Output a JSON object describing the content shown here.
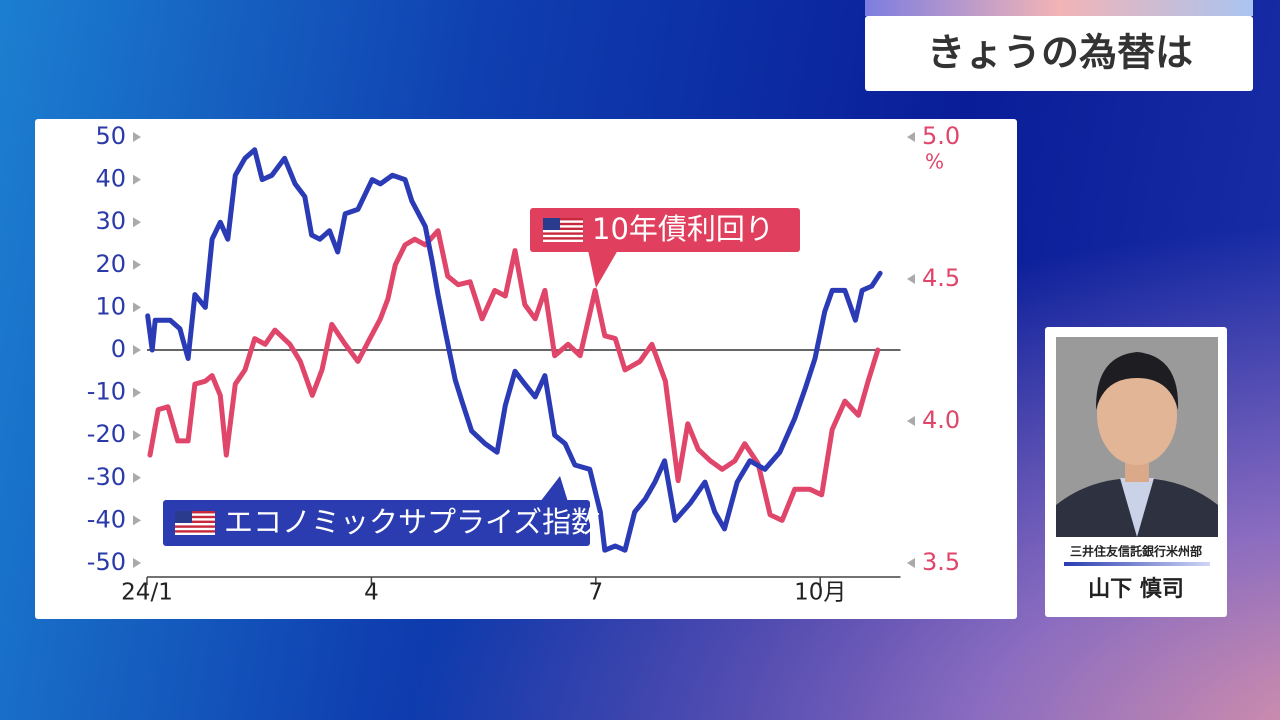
{
  "header": {
    "title": "きょうの為替は"
  },
  "name_card": {
    "affiliation": "三井住友信託銀行米州部",
    "name": "山下 慎司"
  },
  "chart_data": {
    "type": "line",
    "xlim": [
      0,
      10.1
    ],
    "xticks": [
      {
        "value": 0,
        "label": "24/1"
      },
      {
        "value": 3,
        "label": "4"
      },
      {
        "value": 6,
        "label": "7"
      },
      {
        "value": 9,
        "label": "10月"
      }
    ],
    "ylim": [
      -50,
      50
    ],
    "yticks": [
      -50,
      -40,
      -30,
      -20,
      -10,
      0,
      10,
      20,
      30,
      40,
      50
    ],
    "y2lim": [
      3.5,
      5.0
    ],
    "y2ticks": [
      3.5,
      {
        "value": 4,
        "label": "4.0"
      },
      4.5,
      {
        "value": 5,
        "label": "5.0"
      }
    ],
    "y2_unit": "%",
    "series": [
      {
        "name": "エコノミックサプライズ指数",
        "color": "#2b3bb5",
        "axis": "y",
        "x": [
          0.01,
          0.07,
          0.11,
          0.31,
          0.44,
          0.55,
          0.64,
          0.78,
          0.87,
          0.98,
          1.08,
          1.18,
          1.31,
          1.44,
          1.54,
          1.67,
          1.84,
          1.98,
          2.11,
          2.2,
          2.31,
          2.44,
          2.55,
          2.65,
          2.82,
          3.01,
          3.12,
          3.28,
          3.45,
          3.54,
          3.72,
          3.81,
          3.89,
          3.98,
          4.12,
          4.21,
          4.34,
          4.52,
          4.68,
          4.79,
          4.92,
          5.05,
          5.19,
          5.32,
          5.45,
          5.59,
          5.72,
          5.92,
          6.06,
          6.12,
          6.26,
          6.39,
          6.52,
          6.66,
          6.79,
          6.92,
          7.06,
          7.26,
          7.46,
          7.59,
          7.72,
          7.89,
          8.06,
          8.26,
          8.46,
          8.66,
          8.8,
          8.93,
          9.06,
          9.16,
          9.33,
          9.47,
          9.56,
          9.69,
          9.8
        ],
        "values": [
          8,
          0,
          7,
          7,
          5,
          -2,
          13,
          10,
          26,
          30,
          26,
          41,
          45,
          47,
          40,
          41,
          45,
          39,
          36,
          27,
          26,
          28,
          23,
          32,
          33,
          40,
          39,
          41,
          40,
          35,
          29,
          21,
          13,
          5,
          -7,
          -12,
          -19,
          -22,
          -24,
          -13,
          -5,
          -8,
          -11,
          -6,
          -20,
          -22,
          -27,
          -28,
          -38,
          -47,
          -46,
          -47,
          -38,
          -35,
          -31,
          -26,
          -40,
          -36,
          -31,
          -38,
          -42,
          -31,
          -26,
          -28,
          -24,
          -16,
          -9,
          -2,
          9,
          14,
          14,
          7,
          14,
          15,
          18
        ]
      },
      {
        "name": "10年債利回り",
        "color": "#e0456a",
        "axis": "y2",
        "x": [
          0.04,
          0.15,
          0.28,
          0.41,
          0.55,
          0.64,
          0.78,
          0.87,
          0.98,
          1.06,
          1.18,
          1.31,
          1.44,
          1.58,
          1.71,
          1.91,
          2.05,
          2.21,
          2.34,
          2.47,
          2.65,
          2.82,
          2.98,
          3.12,
          3.22,
          3.32,
          3.45,
          3.58,
          3.72,
          3.89,
          4.02,
          4.16,
          4.32,
          4.48,
          4.65,
          4.79,
          4.92,
          5.05,
          5.19,
          5.32,
          5.45,
          5.63,
          5.79,
          5.99,
          6.12,
          6.26,
          6.39,
          6.59,
          6.75,
          6.93,
          7.1,
          7.23,
          7.37,
          7.53,
          7.69,
          7.86,
          7.99,
          8.17,
          8.33,
          8.49,
          8.66,
          8.86,
          9.02,
          9.16,
          9.33,
          9.51,
          9.64,
          9.77
        ],
        "values": [
          3.88,
          4.04,
          4.05,
          3.93,
          3.93,
          4.13,
          4.14,
          4.16,
          4.09,
          3.88,
          4.13,
          4.18,
          4.29,
          4.27,
          4.32,
          4.27,
          4.21,
          4.09,
          4.18,
          4.34,
          4.27,
          4.21,
          4.29,
          4.36,
          4.43,
          4.55,
          4.62,
          4.64,
          4.62,
          4.67,
          4.51,
          4.48,
          4.49,
          4.36,
          4.46,
          4.44,
          4.6,
          4.41,
          4.36,
          4.46,
          4.23,
          4.27,
          4.23,
          4.46,
          4.3,
          4.29,
          4.18,
          4.21,
          4.27,
          4.14,
          3.79,
          3.99,
          3.9,
          3.86,
          3.83,
          3.86,
          3.92,
          3.85,
          3.67,
          3.65,
          3.76,
          3.76,
          3.74,
          3.97,
          4.07,
          4.02,
          4.14,
          4.25
        ]
      }
    ]
  }
}
